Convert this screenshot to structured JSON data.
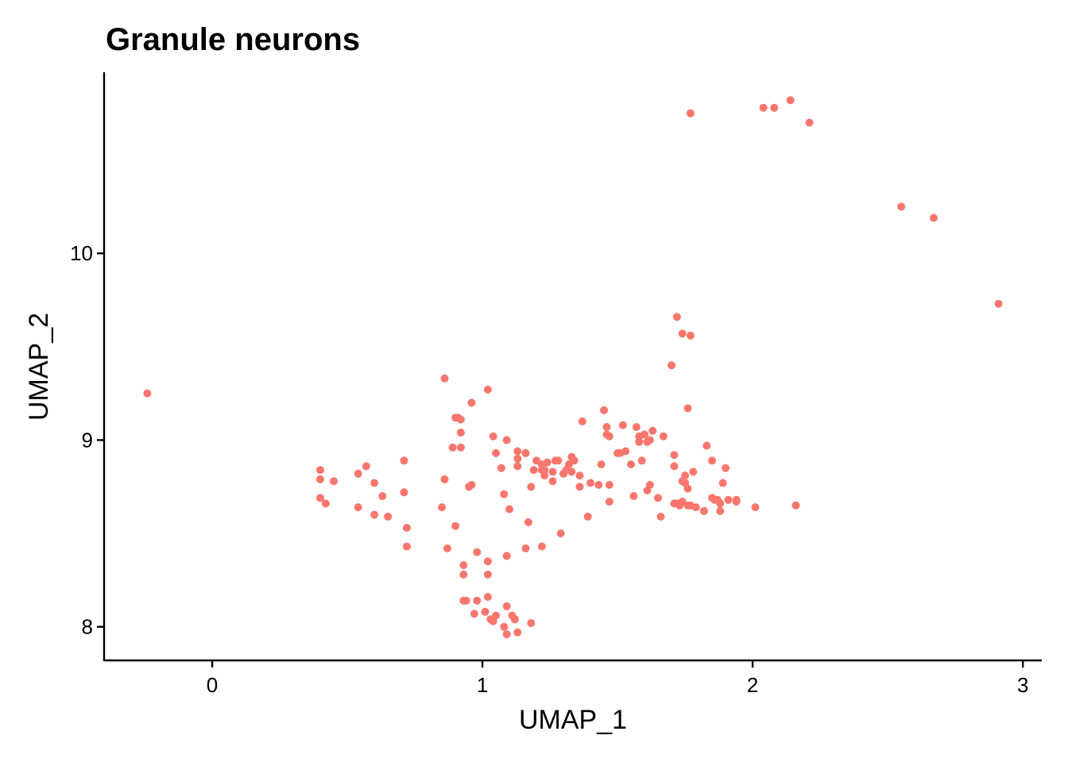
{
  "chart_data": {
    "type": "scatter",
    "title": "Granule neurons",
    "xlabel": "UMAP_1",
    "ylabel": "UMAP_2",
    "xlim": [
      -0.4,
      3.07
    ],
    "ylim": [
      7.82,
      10.97
    ],
    "x_ticks": [
      0,
      1,
      2,
      3
    ],
    "y_ticks": [
      8,
      9,
      10
    ],
    "x_tick_labels": [
      "0",
      "1",
      "2",
      "3"
    ],
    "y_tick_labels": [
      "8",
      "9",
      "10"
    ],
    "grid": false,
    "legend": "none",
    "point_color": "#F8766D",
    "points": [
      [
        -0.24,
        9.25
      ],
      [
        0.4,
        8.84
      ],
      [
        0.4,
        8.79
      ],
      [
        0.4,
        8.69
      ],
      [
        0.42,
        8.66
      ],
      [
        0.45,
        8.78
      ],
      [
        0.54,
        8.82
      ],
      [
        0.54,
        8.64
      ],
      [
        0.57,
        8.86
      ],
      [
        0.6,
        8.6
      ],
      [
        0.6,
        8.77
      ],
      [
        0.63,
        8.7
      ],
      [
        0.65,
        8.59
      ],
      [
        0.71,
        8.89
      ],
      [
        0.71,
        8.72
      ],
      [
        0.72,
        8.53
      ],
      [
        0.72,
        8.43
      ],
      [
        0.85,
        8.64
      ],
      [
        0.86,
        8.79
      ],
      [
        0.86,
        9.33
      ],
      [
        0.87,
        8.42
      ],
      [
        0.89,
        8.96
      ],
      [
        0.9,
        8.54
      ],
      [
        0.9,
        9.12
      ],
      [
        0.91,
        9.12
      ],
      [
        0.92,
        9.11
      ],
      [
        0.92,
        9.04
      ],
      [
        0.92,
        8.96
      ],
      [
        0.93,
        8.33
      ],
      [
        0.93,
        8.28
      ],
      [
        0.93,
        8.14
      ],
      [
        0.94,
        8.14
      ],
      [
        0.95,
        8.75
      ],
      [
        0.96,
        9.2
      ],
      [
        0.96,
        8.76
      ],
      [
        0.97,
        8.07
      ],
      [
        0.98,
        8.4
      ],
      [
        0.98,
        8.14
      ],
      [
        1.01,
        8.08
      ],
      [
        1.02,
        9.27
      ],
      [
        1.02,
        8.35
      ],
      [
        1.02,
        8.28
      ],
      [
        1.02,
        8.16
      ],
      [
        1.03,
        8.04
      ],
      [
        1.04,
        9.02
      ],
      [
        1.04,
        8.03
      ],
      [
        1.05,
        8.93
      ],
      [
        1.05,
        8.06
      ],
      [
        1.07,
        8.85
      ],
      [
        1.08,
        8.0
      ],
      [
        1.08,
        8.71
      ],
      [
        1.09,
        9.0
      ],
      [
        1.09,
        8.11
      ],
      [
        1.09,
        8.38
      ],
      [
        1.09,
        7.96
      ],
      [
        1.1,
        8.63
      ],
      [
        1.11,
        8.06
      ],
      [
        1.12,
        8.04
      ],
      [
        1.12,
        8.04
      ],
      [
        1.13,
        8.9
      ],
      [
        1.13,
        8.86
      ],
      [
        1.13,
        8.94
      ],
      [
        1.13,
        7.97
      ],
      [
        1.16,
        8.93
      ],
      [
        1.16,
        8.42
      ],
      [
        1.17,
        8.56
      ],
      [
        1.18,
        8.75
      ],
      [
        1.18,
        8.02
      ],
      [
        1.19,
        8.84
      ],
      [
        1.2,
        8.89
      ],
      [
        1.22,
        8.84
      ],
      [
        1.22,
        8.87
      ],
      [
        1.22,
        8.43
      ],
      [
        1.23,
        8.81
      ],
      [
        1.23,
        8.84
      ],
      [
        1.24,
        8.88
      ],
      [
        1.26,
        8.78
      ],
      [
        1.26,
        8.83
      ],
      [
        1.27,
        8.89
      ],
      [
        1.28,
        8.89
      ],
      [
        1.29,
        8.5
      ],
      [
        1.3,
        8.82
      ],
      [
        1.31,
        8.84
      ],
      [
        1.32,
        8.87
      ],
      [
        1.33,
        8.91
      ],
      [
        1.33,
        8.83
      ],
      [
        1.34,
        8.89
      ],
      [
        1.36,
        8.81
      ],
      [
        1.36,
        8.75
      ],
      [
        1.37,
        9.1
      ],
      [
        1.39,
        8.59
      ],
      [
        1.4,
        8.77
      ],
      [
        1.43,
        8.76
      ],
      [
        1.44,
        8.87
      ],
      [
        1.45,
        9.16
      ],
      [
        1.46,
        9.07
      ],
      [
        1.46,
        9.03
      ],
      [
        1.47,
        9.02
      ],
      [
        1.47,
        8.76
      ],
      [
        1.47,
        8.67
      ],
      [
        1.5,
        8.93
      ],
      [
        1.51,
        8.93
      ],
      [
        1.52,
        9.08
      ],
      [
        1.53,
        8.94
      ],
      [
        1.55,
        8.87
      ],
      [
        1.56,
        8.7
      ],
      [
        1.57,
        9.07
      ],
      [
        1.58,
        9.02
      ],
      [
        1.58,
        8.99
      ],
      [
        1.59,
        8.89
      ],
      [
        1.6,
        9.03
      ],
      [
        1.61,
        8.99
      ],
      [
        1.61,
        8.73
      ],
      [
        1.62,
        8.76
      ],
      [
        1.62,
        9.0
      ],
      [
        1.63,
        9.05
      ],
      [
        1.65,
        8.69
      ],
      [
        1.66,
        8.59
      ],
      [
        1.67,
        9.02
      ],
      [
        1.7,
        9.4
      ],
      [
        1.71,
        8.66
      ],
      [
        1.71,
        8.92
      ],
      [
        1.71,
        8.86
      ],
      [
        1.72,
        9.66
      ],
      [
        1.72,
        8.66
      ],
      [
        1.73,
        8.65
      ],
      [
        1.74,
        9.57
      ],
      [
        1.74,
        8.67
      ],
      [
        1.74,
        8.78
      ],
      [
        1.75,
        8.81
      ],
      [
        1.75,
        8.77
      ],
      [
        1.76,
        9.17
      ],
      [
        1.76,
        8.74
      ],
      [
        1.76,
        8.65
      ],
      [
        1.77,
        9.56
      ],
      [
        1.77,
        10.75
      ],
      [
        1.77,
        8.65
      ],
      [
        1.78,
        8.83
      ],
      [
        1.79,
        8.64
      ],
      [
        1.82,
        8.62
      ],
      [
        1.83,
        8.97
      ],
      [
        1.85,
        8.89
      ],
      [
        1.85,
        8.69
      ],
      [
        1.86,
        8.68
      ],
      [
        1.87,
        8.68
      ],
      [
        1.88,
        8.66
      ],
      [
        1.88,
        8.62
      ],
      [
        1.89,
        8.77
      ],
      [
        1.9,
        8.85
      ],
      [
        1.91,
        8.68
      ],
      [
        1.94,
        8.68
      ],
      [
        1.94,
        8.67
      ],
      [
        2.01,
        8.64
      ],
      [
        2.04,
        10.78
      ],
      [
        2.08,
        10.78
      ],
      [
        2.14,
        10.82
      ],
      [
        2.16,
        8.65
      ],
      [
        2.21,
        10.7
      ],
      [
        2.55,
        10.25
      ],
      [
        2.67,
        10.19
      ],
      [
        2.91,
        9.73
      ]
    ]
  }
}
